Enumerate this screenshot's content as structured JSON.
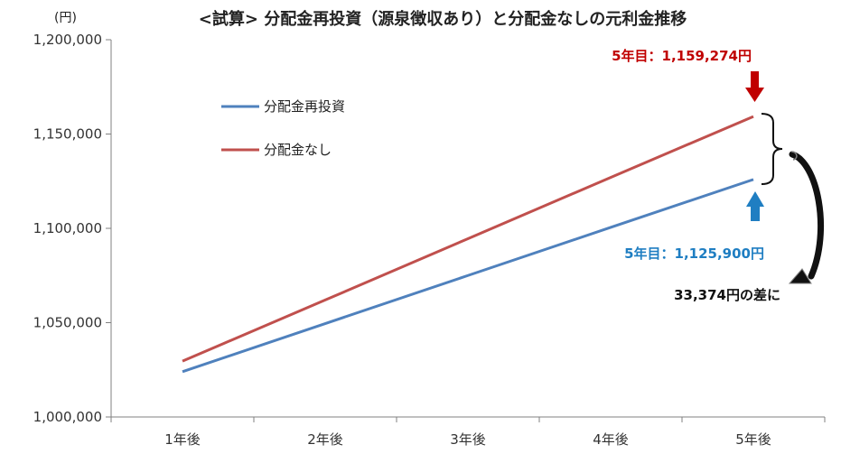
{
  "chart_data": {
    "type": "line",
    "title": "<試算> 分配金再投資（源泉徴収あり）と分配金なしの元利金推移",
    "unit_label": "(円)",
    "categories": [
      "1年後",
      "2年後",
      "3年後",
      "4年後",
      "5年後"
    ],
    "ylim": [
      1000000,
      1200000
    ],
    "yticks": [
      "1,000,000",
      "1,050,000",
      "1,100,000",
      "1,150,000",
      "1,200,000"
    ],
    "grid": false,
    "legend_position": "top-left",
    "series": [
      {
        "name": "分配金再投資",
        "color": "#4f81bd",
        "values": [
          1024000,
          1049500,
          1075000,
          1100500,
          1125900
        ]
      },
      {
        "name": "分配金なし",
        "color": "#c0504d",
        "values": [
          1029600,
          1062000,
          1094500,
          1127000,
          1159274
        ]
      }
    ],
    "annotations": {
      "no_dividend_final": "5年目：1,159,274円",
      "reinvest_final": "5年目：1,125,900円",
      "difference": "33,374円の差に"
    },
    "annotation_colors": {
      "red": "#c00000",
      "blue": "#1f7ec2"
    }
  }
}
